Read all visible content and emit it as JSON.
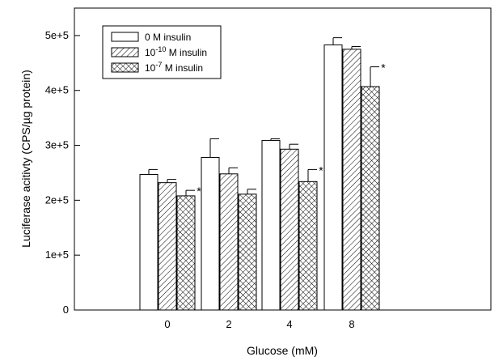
{
  "chart_data": {
    "type": "bar",
    "title": "",
    "xlabel": "Glucose (mM)",
    "ylabel": "Luciferase acitivty (CPS/µg protein)",
    "ylim": [
      0,
      550000
    ],
    "yticks": [
      0,
      100000,
      200000,
      300000,
      400000,
      500000
    ],
    "ytick_labels": [
      "0",
      "1e+5",
      "2e+5",
      "3e+5",
      "4e+5",
      "5e+5"
    ],
    "categories": [
      "0",
      "2",
      "4",
      "8"
    ],
    "series": [
      {
        "name": "0 M insulin",
        "values": [
          247000,
          278000,
          309000,
          483000
        ],
        "errors": [
          9000,
          34000,
          3000,
          13000
        ],
        "pattern": "open"
      },
      {
        "name": "10-10 M insulin",
        "legend_base": "10",
        "legend_exp": "-10",
        "legend_rest": " M insulin",
        "values": [
          232000,
          248000,
          293000,
          475000
        ],
        "errors": [
          6000,
          11000,
          9000,
          5000
        ],
        "pattern": "diagonal"
      },
      {
        "name": "10-7 M insulin",
        "legend_base": "10",
        "legend_exp": "-7",
        "legend_rest": " M insulin",
        "values": [
          208000,
          211000,
          234000,
          407000
        ],
        "errors": [
          10000,
          9000,
          22000,
          36000
        ],
        "pattern": "crosshatch"
      }
    ],
    "significance": [
      {
        "category": "0",
        "series": 2,
        "label": "*"
      },
      {
        "category": "4",
        "series": 2,
        "label": "*"
      },
      {
        "category": "8",
        "series": 2,
        "label": "*"
      }
    ],
    "legend_position": "top-left",
    "grid": false
  }
}
